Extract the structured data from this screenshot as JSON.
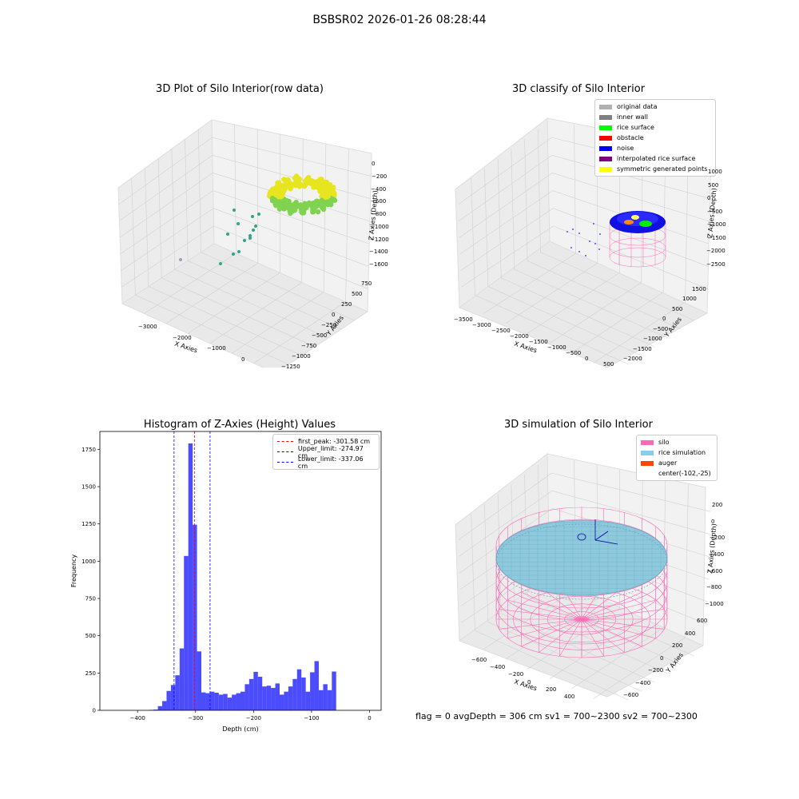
{
  "suptitle": "BSBSR02 2026-01-26 08:28:44",
  "chart_data": [
    {
      "type": "scatter",
      "title": "3D Plot of Silo Interior(row data)",
      "xlabel": "X Axies",
      "ylabel": "Y Axies",
      "zlabel": "Z Axies (Depth)",
      "x_ticks": [
        "−3000",
        "−2000",
        "−1000",
        "0"
      ],
      "y_ticks": [
        "750",
        "500",
        "250",
        "0",
        "−250",
        "−500",
        "−750",
        "−1000",
        "−1250"
      ],
      "z_ticks": [
        "0",
        "−200",
        "−400",
        "−600",
        "−800",
        "−1000",
        "−1200",
        "−1400",
        "−1600"
      ],
      "colormap": [
        "#2fa58a",
        "#7fd34f",
        "#e6e51f"
      ]
    },
    {
      "type": "scatter",
      "title": "3D classify of Silo Interior",
      "xlabel": "X Axies",
      "ylabel": "Y Axies",
      "zlabel": "Z Axies (Depth)",
      "x_ticks": [
        "−3500",
        "−3000",
        "−2500",
        "−2000",
        "−1500",
        "−1000",
        "−500",
        "0",
        "500"
      ],
      "y_ticks": [
        "1500",
        "1000",
        "500",
        "0",
        "−500",
        "−1000",
        "−1500",
        "−2000"
      ],
      "z_ticks": [
        "1000",
        "500",
        "0",
        "−500",
        "−1000",
        "−1500",
        "−2000",
        "−2500"
      ],
      "legend": [
        {
          "label": "original data",
          "color": "#b0b0b0"
        },
        {
          "label": "inner wall",
          "color": "#808080"
        },
        {
          "label": "rice surface",
          "color": "#00ff00"
        },
        {
          "label": "obstacle",
          "color": "#ff0000"
        },
        {
          "label": "noise",
          "color": "#0000ff"
        },
        {
          "label": "interpolated rice surface",
          "color": "#800080"
        },
        {
          "label": "symmetric generated points",
          "color": "#ffff00"
        }
      ]
    },
    {
      "type": "bar",
      "title": "Histogram of Z-Axies (Height) Values",
      "xlabel": "Depth (cm)",
      "ylabel": "Frequency",
      "xlim": [
        -465,
        20
      ],
      "ylim": [
        0,
        1870
      ],
      "x_ticks": [
        -400,
        -300,
        -200,
        -100,
        0
      ],
      "y_ticks": [
        0,
        250,
        500,
        750,
        1000,
        1250,
        1500,
        1750
      ],
      "bin_width": 7.5,
      "bin_start": -380,
      "values": [
        3,
        5,
        28,
        62,
        130,
        170,
        235,
        415,
        1035,
        1790,
        1245,
        395,
        120,
        115,
        125,
        118,
        105,
        110,
        85,
        105,
        115,
        125,
        175,
        210,
        258,
        225,
        160,
        165,
        150,
        180,
        105,
        125,
        160,
        210,
        275,
        220,
        125,
        255,
        330,
        135,
        175,
        135,
        260
      ],
      "bar_color": "#0000ff",
      "lines": [
        {
          "label": "first_peak: -301.58 cm",
          "x": -301.58,
          "color": "#ff0000"
        },
        {
          "label": "Upper_limit: -274.97 cm",
          "x": -274.97,
          "color": "#0000ff"
        },
        {
          "label": "Lower_limit: -337.06 cm",
          "x": -337.06,
          "color": "#0000ff"
        }
      ]
    },
    {
      "type": "other",
      "title": "3D simulation of Silo Interior",
      "xlabel": "X Axies",
      "ylabel": "Y Axies",
      "zlabel": "Z Axies (Depth)",
      "x_ticks": [
        "−600",
        "−400",
        "−200",
        "0",
        "200",
        "400"
      ],
      "y_ticks": [
        "600",
        "400",
        "200",
        "0",
        "−200",
        "−400",
        "−600"
      ],
      "z_ticks": [
        "200",
        "0",
        "−200",
        "−400",
        "−600",
        "−800",
        "−1000"
      ],
      "legend": [
        {
          "label": "silo",
          "color": "#ff69b4"
        },
        {
          "label": "rice simulation",
          "color": "#87ceeb"
        },
        {
          "label": "auger",
          "color": "#ff4500"
        },
        {
          "label": "center(-102,-25)",
          "color": ""
        }
      ]
    }
  ],
  "footer": "flag = 0     avgDepth = 306 cm  sv1 = 700~2300  sv2 = 700~2300"
}
